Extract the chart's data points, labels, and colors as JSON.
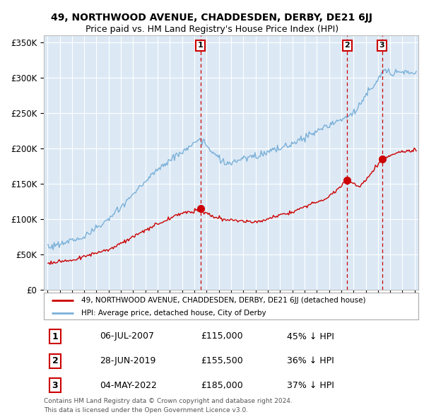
{
  "title": "49, NORTHWOOD AVENUE, CHADDESDEN, DERBY, DE21 6JJ",
  "subtitle": "Price paid vs. HM Land Registry's House Price Index (HPI)",
  "ylabel_ticks": [
    "£0",
    "£50K",
    "£100K",
    "£150K",
    "£200K",
    "£250K",
    "£300K",
    "£350K"
  ],
  "ytick_values": [
    0,
    50000,
    100000,
    150000,
    200000,
    250000,
    300000,
    350000
  ],
  "ylim": [
    0,
    360000
  ],
  "xlim_start": 1994.7,
  "xlim_end": 2025.3,
  "sale_prices": [
    115000,
    155500,
    185000
  ],
  "sale_labels": [
    "1",
    "2",
    "3"
  ],
  "sale_times": [
    2007.5,
    2019.49,
    2022.33
  ],
  "sale_info": [
    {
      "label": "1",
      "date": "06-JUL-2007",
      "price": "£115,000",
      "pct": "45% ↓ HPI"
    },
    {
      "label": "2",
      "date": "28-JUN-2019",
      "price": "£155,500",
      "pct": "36% ↓ HPI"
    },
    {
      "label": "3",
      "date": "04-MAY-2022",
      "price": "£185,000",
      "pct": "37% ↓ HPI"
    }
  ],
  "hpi_line_color": "#7ab0d8",
  "sale_line_color": "#cc0000",
  "sale_dot_color": "#cc0000",
  "vline_color": "#cc0000",
  "background_color": "#ffffff",
  "plot_bg_color": "#dce9f5",
  "grid_color": "#ffffff",
  "legend_line1": "49, NORTHWOOD AVENUE, CHADDESDEN, DERBY, DE21 6JJ (detached house)",
  "legend_line2": "HPI: Average price, detached house, City of Derby",
  "footnote1": "Contains HM Land Registry data © Crown copyright and database right 2024.",
  "footnote2": "This data is licensed under the Open Government Licence v3.0."
}
